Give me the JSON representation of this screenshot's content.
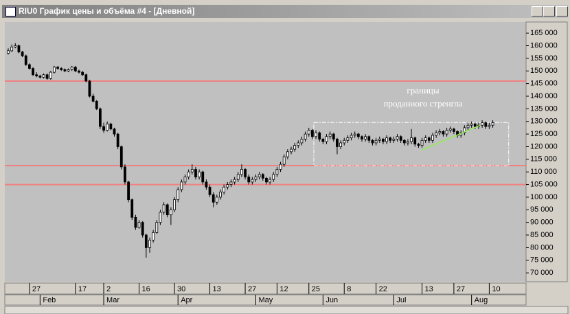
{
  "window": {
    "title": "RIU0 График цены и объёма #4 - [Дневной]"
  },
  "chart_data": {
    "type": "candlestick",
    "ylim": [
      66500,
      169400
    ],
    "yticks": [
      {
        "value": 70000,
        "label": "70 000"
      },
      {
        "value": 75000,
        "label": "75 000"
      },
      {
        "value": 80000,
        "label": "80 000"
      },
      {
        "value": 85000,
        "label": "85 000"
      },
      {
        "value": 90000,
        "label": "90 000"
      },
      {
        "value": 95000,
        "label": "95 000"
      },
      {
        "value": 100000,
        "label": "100 000"
      },
      {
        "value": 105000,
        "label": "105 000"
      },
      {
        "value": 110000,
        "label": "110 000"
      },
      {
        "value": 115000,
        "label": "115 000"
      },
      {
        "value": 120000,
        "label": "120 000"
      },
      {
        "value": 125000,
        "label": "125 000"
      },
      {
        "value": 130000,
        "label": "130 000"
      },
      {
        "value": 135000,
        "label": "135 000"
      },
      {
        "value": 140000,
        "label": "140 000"
      },
      {
        "value": 145000,
        "label": "145 000"
      },
      {
        "value": 150000,
        "label": "150 000"
      },
      {
        "value": 155000,
        "label": "155 000"
      },
      {
        "value": 160000,
        "label": "160 000"
      },
      {
        "value": 165000,
        "label": "165 000"
      }
    ],
    "day_ticks": [
      {
        "value": 6,
        "label": "27"
      },
      {
        "value": 19,
        "label": "17"
      },
      {
        "value": 27,
        "label": "2"
      },
      {
        "value": 37,
        "label": "16"
      },
      {
        "value": 47,
        "label": "30"
      },
      {
        "value": 57,
        "label": "13"
      },
      {
        "value": 67,
        "label": "27"
      },
      {
        "value": 76,
        "label": "12"
      },
      {
        "value": 85,
        "label": "25"
      },
      {
        "value": 95,
        "label": "8"
      },
      {
        "value": 104,
        "label": "22"
      },
      {
        "value": 117,
        "label": "13"
      },
      {
        "value": 126,
        "label": "27"
      },
      {
        "value": 136,
        "label": "10"
      }
    ],
    "month_ticks": [
      {
        "value": 9,
        "label": "Feb"
      },
      {
        "value": 27,
        "label": "Mar"
      },
      {
        "value": 48,
        "label": "Apr"
      },
      {
        "value": 70,
        "label": "May"
      },
      {
        "value": 89,
        "label": "Jun"
      },
      {
        "value": 109,
        "label": "Jul"
      },
      {
        "value": 131,
        "label": "Aug"
      }
    ],
    "up_color": "#ffffff",
    "down_color": "#000000",
    "levels": [
      {
        "value": 146000,
        "color": "#f08080"
      },
      {
        "value": 112500,
        "color": "#f08080"
      },
      {
        "value": 105000,
        "color": "#f08080"
      }
    ],
    "box": {
      "from": 86.4,
      "to": 141.5,
      "low": 112500,
      "high": 129600,
      "color": "#ffffff"
    },
    "trend_line": {
      "x": [
        117,
        133.5
      ],
      "y": [
        118700,
        128500
      ],
      "color": "#90ee50"
    },
    "annotation": [
      "границы",
      "проданного стренгла"
    ],
    "candles": [
      {
        "o": 157000,
        "h": 159000,
        "l": 156500,
        "c": 158000
      },
      {
        "o": 158000,
        "h": 160500,
        "l": 157500,
        "c": 159500
      },
      {
        "o": 159500,
        "h": 161000,
        "l": 159000,
        "c": 160000
      },
      {
        "o": 160000,
        "h": 160500,
        "l": 157000,
        "c": 157500
      },
      {
        "o": 157500,
        "h": 158000,
        "l": 155500,
        "c": 156000
      },
      {
        "o": 156000,
        "h": 156500,
        "l": 152000,
        "c": 152500
      },
      {
        "o": 152500,
        "h": 153000,
        "l": 150500,
        "c": 151000
      },
      {
        "o": 151000,
        "h": 151500,
        "l": 148000,
        "c": 148500
      },
      {
        "o": 148500,
        "h": 149500,
        "l": 147500,
        "c": 148000
      },
      {
        "o": 148000,
        "h": 148500,
        "l": 147000,
        "c": 147500
      },
      {
        "o": 147500,
        "h": 149000,
        "l": 147000,
        "c": 148500
      },
      {
        "o": 148500,
        "h": 149000,
        "l": 146500,
        "c": 147000
      },
      {
        "o": 147000,
        "h": 150000,
        "l": 146500,
        "c": 149500
      },
      {
        "o": 149500,
        "h": 152000,
        "l": 149000,
        "c": 151500
      },
      {
        "o": 151500,
        "h": 152000,
        "l": 150500,
        "c": 151000
      },
      {
        "o": 151000,
        "h": 151500,
        "l": 150000,
        "c": 150500
      },
      {
        "o": 150500,
        "h": 151000,
        "l": 149500,
        "c": 150000
      },
      {
        "o": 150000,
        "h": 151000,
        "l": 149500,
        "c": 150500
      },
      {
        "o": 150500,
        "h": 152000,
        "l": 150000,
        "c": 151500
      },
      {
        "o": 151500,
        "h": 152000,
        "l": 149500,
        "c": 150000
      },
      {
        "o": 150000,
        "h": 150500,
        "l": 149000,
        "c": 149500
      },
      {
        "o": 149500,
        "h": 150000,
        "l": 148000,
        "c": 148500
      },
      {
        "o": 148500,
        "h": 149000,
        "l": 145500,
        "c": 146000
      },
      {
        "o": 146000,
        "h": 146500,
        "l": 139500,
        "c": 140000
      },
      {
        "o": 140000,
        "h": 141000,
        "l": 137500,
        "c": 138000
      },
      {
        "o": 138000,
        "h": 138500,
        "l": 134500,
        "c": 135000
      },
      {
        "o": 135000,
        "h": 135500,
        "l": 127000,
        "c": 128000
      },
      {
        "o": 128000,
        "h": 129500,
        "l": 125500,
        "c": 126500
      },
      {
        "o": 126500,
        "h": 130000,
        "l": 126000,
        "c": 129000
      },
      {
        "o": 129000,
        "h": 129500,
        "l": 126500,
        "c": 127000
      },
      {
        "o": 127000,
        "h": 127500,
        "l": 124000,
        "c": 125000
      },
      {
        "o": 125000,
        "h": 125500,
        "l": 119000,
        "c": 120000
      },
      {
        "o": 120000,
        "h": 120500,
        "l": 111000,
        "c": 112000
      },
      {
        "o": 112000,
        "h": 113000,
        "l": 105000,
        "c": 106000
      },
      {
        "o": 106000,
        "h": 106500,
        "l": 98000,
        "c": 99000
      },
      {
        "o": 99000,
        "h": 99500,
        "l": 91000,
        "c": 92000
      },
      {
        "o": 92000,
        "h": 93000,
        "l": 87000,
        "c": 88000
      },
      {
        "o": 88000,
        "h": 91000,
        "l": 87500,
        "c": 90000
      },
      {
        "o": 90000,
        "h": 90500,
        "l": 84000,
        "c": 85000
      },
      {
        "o": 85000,
        "h": 85500,
        "l": 76000,
        "c": 80000
      },
      {
        "o": 80000,
        "h": 84000,
        "l": 78000,
        "c": 83000
      },
      {
        "o": 83000,
        "h": 87000,
        "l": 82000,
        "c": 86000
      },
      {
        "o": 86000,
        "h": 91000,
        "l": 85500,
        "c": 90000
      },
      {
        "o": 90000,
        "h": 95000,
        "l": 89000,
        "c": 94000
      },
      {
        "o": 94000,
        "h": 98000,
        "l": 93000,
        "c": 97000
      },
      {
        "o": 97000,
        "h": 97500,
        "l": 92000,
        "c": 93000
      },
      {
        "o": 93000,
        "h": 96000,
        "l": 89000,
        "c": 95000
      },
      {
        "o": 95000,
        "h": 100000,
        "l": 94000,
        "c": 99000
      },
      {
        "o": 99000,
        "h": 104000,
        "l": 98000,
        "c": 103000
      },
      {
        "o": 103000,
        "h": 107000,
        "l": 102000,
        "c": 106000
      },
      {
        "o": 106000,
        "h": 109000,
        "l": 105000,
        "c": 108000
      },
      {
        "o": 108000,
        "h": 111000,
        "l": 107000,
        "c": 110000
      },
      {
        "o": 110000,
        "h": 113000,
        "l": 109000,
        "c": 111000
      },
      {
        "o": 111000,
        "h": 112000,
        "l": 107000,
        "c": 108000
      },
      {
        "o": 108000,
        "h": 111000,
        "l": 107000,
        "c": 110000
      },
      {
        "o": 110000,
        "h": 110500,
        "l": 105000,
        "c": 106000
      },
      {
        "o": 106000,
        "h": 107000,
        "l": 103000,
        "c": 104000
      },
      {
        "o": 104000,
        "h": 105000,
        "l": 100000,
        "c": 101000
      },
      {
        "o": 101000,
        "h": 102000,
        "l": 96000,
        "c": 98000
      },
      {
        "o": 98000,
        "h": 101000,
        "l": 97000,
        "c": 100000
      },
      {
        "o": 100000,
        "h": 103000,
        "l": 99000,
        "c": 102000
      },
      {
        "o": 102000,
        "h": 105000,
        "l": 101000,
        "c": 104000
      },
      {
        "o": 104000,
        "h": 106000,
        "l": 103000,
        "c": 105000
      },
      {
        "o": 105000,
        "h": 107000,
        "l": 104000,
        "c": 106000
      },
      {
        "o": 106000,
        "h": 108000,
        "l": 105000,
        "c": 107000
      },
      {
        "o": 107000,
        "h": 110000,
        "l": 106000,
        "c": 109000
      },
      {
        "o": 109000,
        "h": 113000,
        "l": 108000,
        "c": 111000
      },
      {
        "o": 111000,
        "h": 111500,
        "l": 107000,
        "c": 108000
      },
      {
        "o": 108000,
        "h": 109000,
        "l": 105000,
        "c": 106000
      },
      {
        "o": 106000,
        "h": 108000,
        "l": 105000,
        "c": 107000
      },
      {
        "o": 107000,
        "h": 109000,
        "l": 106000,
        "c": 108000
      },
      {
        "o": 108000,
        "h": 110000,
        "l": 107000,
        "c": 109000
      },
      {
        "o": 109000,
        "h": 109500,
        "l": 106500,
        "c": 107500
      },
      {
        "o": 107500,
        "h": 108000,
        "l": 105000,
        "c": 106000
      },
      {
        "o": 106000,
        "h": 108000,
        "l": 105000,
        "c": 107000
      },
      {
        "o": 107000,
        "h": 110000,
        "l": 106000,
        "c": 109000
      },
      {
        "o": 109000,
        "h": 112000,
        "l": 108000,
        "c": 111000
      },
      {
        "o": 111000,
        "h": 114000,
        "l": 110000,
        "c": 113000
      },
      {
        "o": 113000,
        "h": 117000,
        "l": 112000,
        "c": 116000
      },
      {
        "o": 116000,
        "h": 119000,
        "l": 115000,
        "c": 118000
      },
      {
        "o": 118000,
        "h": 120000,
        "l": 117000,
        "c": 119000
      },
      {
        "o": 119000,
        "h": 121500,
        "l": 118000,
        "c": 120500
      },
      {
        "o": 120500,
        "h": 122500,
        "l": 119500,
        "c": 121500
      },
      {
        "o": 121500,
        "h": 124000,
        "l": 120500,
        "c": 123000
      },
      {
        "o": 123000,
        "h": 126000,
        "l": 122000,
        "c": 125000
      },
      {
        "o": 125000,
        "h": 127500,
        "l": 124000,
        "c": 126500
      },
      {
        "o": 126500,
        "h": 127000,
        "l": 123000,
        "c": 124000
      },
      {
        "o": 124000,
        "h": 126500,
        "l": 123000,
        "c": 125500
      },
      {
        "o": 125500,
        "h": 126000,
        "l": 122000,
        "c": 123000
      },
      {
        "o": 123000,
        "h": 123500,
        "l": 121000,
        "c": 122000
      },
      {
        "o": 122000,
        "h": 125000,
        "l": 121000,
        "c": 124000
      },
      {
        "o": 124000,
        "h": 126000,
        "l": 123000,
        "c": 125000
      },
      {
        "o": 125000,
        "h": 125500,
        "l": 122000,
        "c": 123000
      },
      {
        "o": 123000,
        "h": 123500,
        "l": 117000,
        "c": 120000
      },
      {
        "o": 120000,
        "h": 122500,
        "l": 119000,
        "c": 121500
      },
      {
        "o": 121500,
        "h": 123500,
        "l": 120500,
        "c": 122500
      },
      {
        "o": 122500,
        "h": 124500,
        "l": 121500,
        "c": 123500
      },
      {
        "o": 123500,
        "h": 125500,
        "l": 122500,
        "c": 124500
      },
      {
        "o": 124500,
        "h": 126000,
        "l": 123500,
        "c": 125000
      },
      {
        "o": 125000,
        "h": 125500,
        "l": 123000,
        "c": 124000
      },
      {
        "o": 124000,
        "h": 124500,
        "l": 122000,
        "c": 123000
      },
      {
        "o": 123000,
        "h": 125000,
        "l": 122000,
        "c": 124000
      },
      {
        "o": 124000,
        "h": 124500,
        "l": 121500,
        "c": 122500
      },
      {
        "o": 122500,
        "h": 123000,
        "l": 120500,
        "c": 121500
      },
      {
        "o": 121500,
        "h": 123500,
        "l": 120500,
        "c": 122500
      },
      {
        "o": 122500,
        "h": 124000,
        "l": 121500,
        "c": 123000
      },
      {
        "o": 123000,
        "h": 123500,
        "l": 121000,
        "c": 122000
      },
      {
        "o": 122000,
        "h": 124500,
        "l": 121000,
        "c": 123500
      },
      {
        "o": 123500,
        "h": 124000,
        "l": 121500,
        "c": 122500
      },
      {
        "o": 122500,
        "h": 124000,
        "l": 121500,
        "c": 123000
      },
      {
        "o": 123000,
        "h": 125000,
        "l": 122000,
        "c": 124000
      },
      {
        "o": 124000,
        "h": 124500,
        "l": 121500,
        "c": 122500
      },
      {
        "o": 122500,
        "h": 123000,
        "l": 120500,
        "c": 121500
      },
      {
        "o": 121500,
        "h": 123000,
        "l": 120500,
        "c": 122000
      },
      {
        "o": 122000,
        "h": 127000,
        "l": 121000,
        "c": 123500
      },
      {
        "o": 123500,
        "h": 124000,
        "l": 120000,
        "c": 121000
      },
      {
        "o": 121000,
        "h": 121500,
        "l": 119500,
        "c": 120500
      },
      {
        "o": 120500,
        "h": 123500,
        "l": 119500,
        "c": 122500
      },
      {
        "o": 122500,
        "h": 124500,
        "l": 121500,
        "c": 123500
      },
      {
        "o": 123500,
        "h": 124000,
        "l": 121500,
        "c": 122500
      },
      {
        "o": 122500,
        "h": 125500,
        "l": 121500,
        "c": 124500
      },
      {
        "o": 124500,
        "h": 126500,
        "l": 123500,
        "c": 125500
      },
      {
        "o": 125500,
        "h": 127000,
        "l": 124500,
        "c": 126000
      },
      {
        "o": 126000,
        "h": 126500,
        "l": 124000,
        "c": 125000
      },
      {
        "o": 125000,
        "h": 127500,
        "l": 124000,
        "c": 126500
      },
      {
        "o": 126500,
        "h": 128000,
        "l": 125500,
        "c": 127000
      },
      {
        "o": 127000,
        "h": 127500,
        "l": 125000,
        "c": 126000
      },
      {
        "o": 126000,
        "h": 126500,
        "l": 123500,
        "c": 124500
      },
      {
        "o": 124500,
        "h": 126500,
        "l": 123500,
        "c": 125500
      },
      {
        "o": 125500,
        "h": 128500,
        "l": 124500,
        "c": 127500
      },
      {
        "o": 127500,
        "h": 129500,
        "l": 126500,
        "c": 128500
      },
      {
        "o": 128500,
        "h": 130000,
        "l": 127500,
        "c": 129000
      },
      {
        "o": 129000,
        "h": 129500,
        "l": 127000,
        "c": 128000
      },
      {
        "o": 128000,
        "h": 129500,
        "l": 127000,
        "c": 128500
      },
      {
        "o": 128500,
        "h": 130500,
        "l": 127500,
        "c": 129500
      },
      {
        "o": 129500,
        "h": 130000,
        "l": 127000,
        "c": 128000
      },
      {
        "o": 128000,
        "h": 129500,
        "l": 127000,
        "c": 128500
      },
      {
        "o": 128500,
        "h": 130500,
        "l": 127500,
        "c": 129500
      }
    ]
  }
}
